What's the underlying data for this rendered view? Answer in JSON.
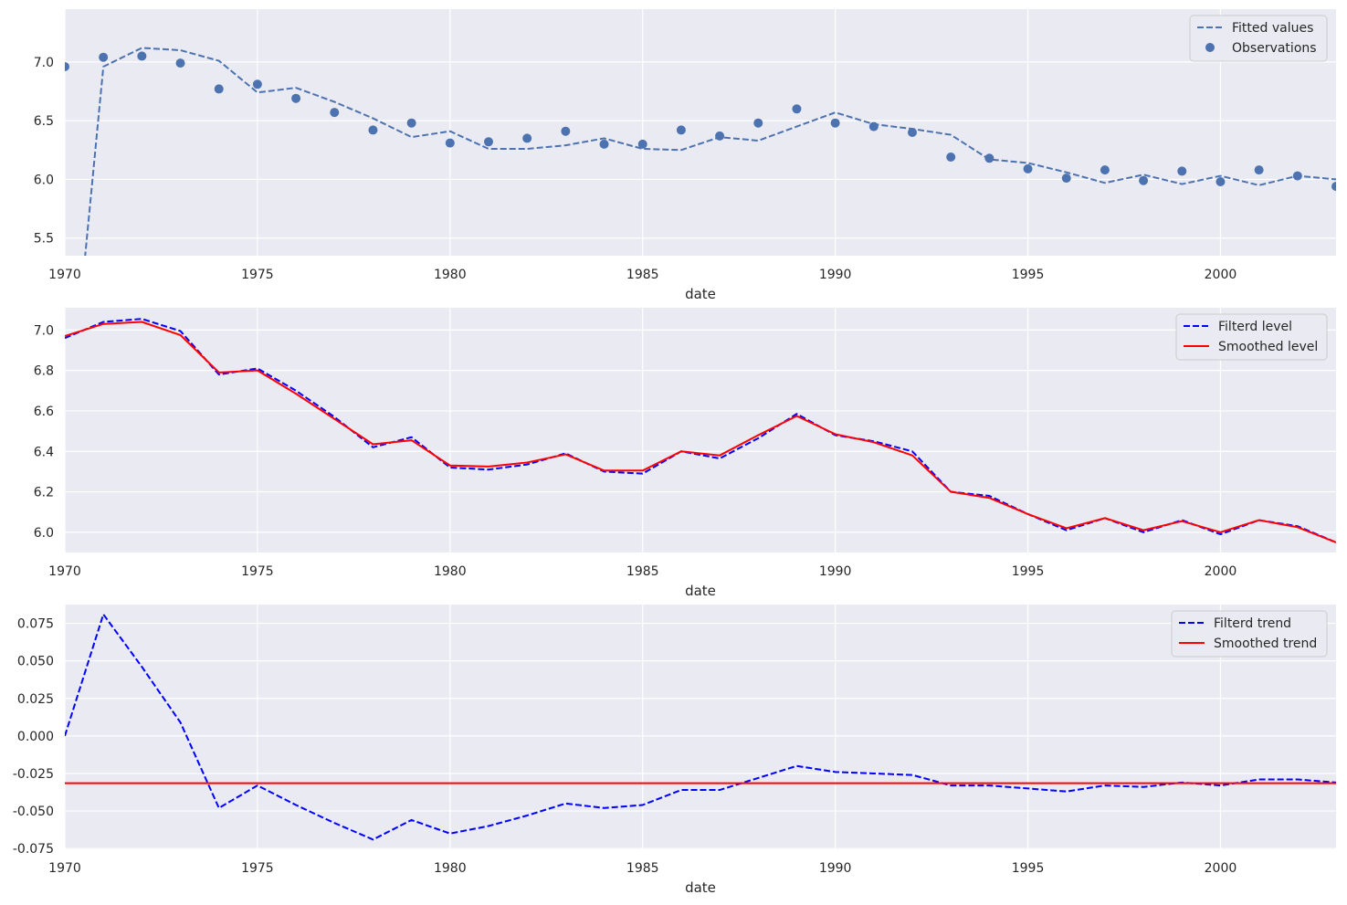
{
  "chart_data": [
    {
      "type": "line",
      "xlabel": "date",
      "ylabel": "",
      "xlim": [
        1970,
        2003
      ],
      "ylim": [
        5.35,
        7.45
      ],
      "x_ticks": [
        1970,
        1975,
        1980,
        1985,
        1990,
        1995,
        2000
      ],
      "y_ticks": [
        5.5,
        6.0,
        6.5,
        7.0
      ],
      "y_tick_decimals": 1,
      "grid": true,
      "legend_position": "top-right",
      "series": [
        {
          "name": "Fitted values",
          "kind": "line",
          "style": "dashed",
          "color": "#4c72b0",
          "x": [
            1970,
            1971,
            1972,
            1973,
            1974,
            1975,
            1976,
            1977,
            1978,
            1979,
            1980,
            1981,
            1982,
            1983,
            1984,
            1985,
            1986,
            1987,
            1988,
            1989,
            1990,
            1991,
            1992,
            1993,
            1994,
            1995,
            1996,
            1997,
            1998,
            1999,
            2000,
            2001,
            2002,
            2003
          ],
          "values": [
            3.55,
            6.96,
            7.12,
            7.1,
            7.01,
            6.74,
            6.78,
            6.66,
            6.52,
            6.36,
            6.41,
            6.26,
            6.26,
            6.29,
            6.35,
            6.26,
            6.25,
            6.36,
            6.33,
            6.45,
            6.57,
            6.47,
            6.43,
            6.38,
            6.17,
            6.14,
            6.06,
            5.97,
            6.04,
            5.96,
            6.03,
            5.95,
            6.03,
            6.0
          ]
        },
        {
          "name": "Observations",
          "kind": "scatter",
          "color": "#4c72b0",
          "x": [
            1970,
            1971,
            1972,
            1973,
            1974,
            1975,
            1976,
            1977,
            1978,
            1979,
            1980,
            1981,
            1982,
            1983,
            1984,
            1985,
            1986,
            1987,
            1988,
            1989,
            1990,
            1991,
            1992,
            1993,
            1994,
            1995,
            1996,
            1997,
            1998,
            1999,
            2000,
            2001,
            2002,
            2003
          ],
          "values": [
            6.96,
            7.04,
            7.05,
            6.99,
            6.77,
            6.81,
            6.69,
            6.57,
            6.42,
            6.48,
            6.31,
            6.32,
            6.35,
            6.41,
            6.3,
            6.3,
            6.42,
            6.37,
            6.48,
            6.6,
            6.48,
            6.45,
            6.4,
            6.19,
            6.18,
            6.09,
            6.01,
            6.08,
            5.99,
            6.07,
            5.98,
            6.08,
            6.03,
            5.94
          ]
        }
      ]
    },
    {
      "type": "line",
      "xlabel": "date",
      "ylabel": "",
      "xlim": [
        1970,
        2003
      ],
      "ylim": [
        5.9,
        7.11
      ],
      "x_ticks": [
        1970,
        1975,
        1980,
        1985,
        1990,
        1995,
        2000
      ],
      "y_ticks": [
        6.0,
        6.2,
        6.4,
        6.6,
        6.8,
        7.0
      ],
      "y_tick_decimals": 1,
      "grid": true,
      "legend_position": "top-right",
      "series": [
        {
          "name": "Filterd level",
          "kind": "line",
          "style": "dashed",
          "color": "#0000ff",
          "x": [
            1970,
            1971,
            1972,
            1973,
            1974,
            1975,
            1976,
            1977,
            1978,
            1979,
            1980,
            1981,
            1982,
            1983,
            1984,
            1985,
            1986,
            1987,
            1988,
            1989,
            1990,
            1991,
            1992,
            1993,
            1994,
            1995,
            1996,
            1997,
            1998,
            1999,
            2000,
            2001,
            2002,
            2003
          ],
          "values": [
            6.96,
            7.04,
            7.055,
            6.995,
            6.78,
            6.81,
            6.7,
            6.57,
            6.42,
            6.47,
            6.32,
            6.31,
            6.335,
            6.39,
            6.3,
            6.29,
            6.4,
            6.365,
            6.465,
            6.585,
            6.48,
            6.45,
            6.4,
            6.2,
            6.18,
            6.09,
            6.01,
            6.07,
            6.0,
            6.06,
            5.99,
            6.06,
            6.03,
            5.95
          ]
        },
        {
          "name": "Smoothed level",
          "kind": "line",
          "style": "solid",
          "color": "#ff0000",
          "x": [
            1970,
            1971,
            1972,
            1973,
            1974,
            1975,
            1976,
            1977,
            1978,
            1979,
            1980,
            1981,
            1982,
            1983,
            1984,
            1985,
            1986,
            1987,
            1988,
            1989,
            1990,
            1991,
            1992,
            1993,
            1994,
            1995,
            1996,
            1997,
            1998,
            1999,
            2000,
            2001,
            2002,
            2003
          ],
          "values": [
            6.97,
            7.03,
            7.04,
            6.975,
            6.79,
            6.8,
            6.685,
            6.56,
            6.435,
            6.455,
            6.33,
            6.325,
            6.345,
            6.385,
            6.305,
            6.305,
            6.4,
            6.38,
            6.48,
            6.575,
            6.485,
            6.445,
            6.38,
            6.2,
            6.17,
            6.09,
            6.02,
            6.07,
            6.01,
            6.055,
            6.0,
            6.06,
            6.025,
            5.95
          ]
        }
      ]
    },
    {
      "type": "line",
      "xlabel": "date",
      "ylabel": "",
      "xlim": [
        1970,
        2003
      ],
      "ylim": [
        -0.0755,
        0.0875
      ],
      "x_ticks": [
        1970,
        1975,
        1980,
        1985,
        1990,
        1995,
        2000
      ],
      "y_ticks": [
        -0.075,
        -0.05,
        -0.025,
        0.0,
        0.025,
        0.05,
        0.075
      ],
      "y_tick_decimals": 3,
      "grid": true,
      "legend_position": "top-right",
      "series": [
        {
          "name": "Filterd trend",
          "kind": "line",
          "style": "dashed",
          "color": "#0000ff",
          "x": [
            1970,
            1971,
            1972,
            1973,
            1974,
            1975,
            1976,
            1977,
            1978,
            1979,
            1980,
            1981,
            1982,
            1983,
            1984,
            1985,
            1986,
            1987,
            1988,
            1989,
            1990,
            1991,
            1992,
            1993,
            1994,
            1995,
            1996,
            1997,
            1998,
            1999,
            2000,
            2001,
            2002,
            2003
          ],
          "values": [
            0.0,
            0.081,
            0.046,
            0.009,
            -0.048,
            -0.033,
            -0.046,
            -0.058,
            -0.069,
            -0.056,
            -0.065,
            -0.06,
            -0.053,
            -0.045,
            -0.048,
            -0.046,
            -0.036,
            -0.036,
            -0.028,
            -0.02,
            -0.024,
            -0.025,
            -0.026,
            -0.033,
            -0.033,
            -0.035,
            -0.037,
            -0.033,
            -0.034,
            -0.031,
            -0.033,
            -0.029,
            -0.029,
            -0.031
          ]
        },
        {
          "name": "Smoothed trend",
          "kind": "line",
          "style": "solid",
          "color": "#ff0000",
          "x": [
            1970,
            2003
          ],
          "values": [
            -0.0315,
            -0.0315
          ]
        }
      ]
    }
  ]
}
